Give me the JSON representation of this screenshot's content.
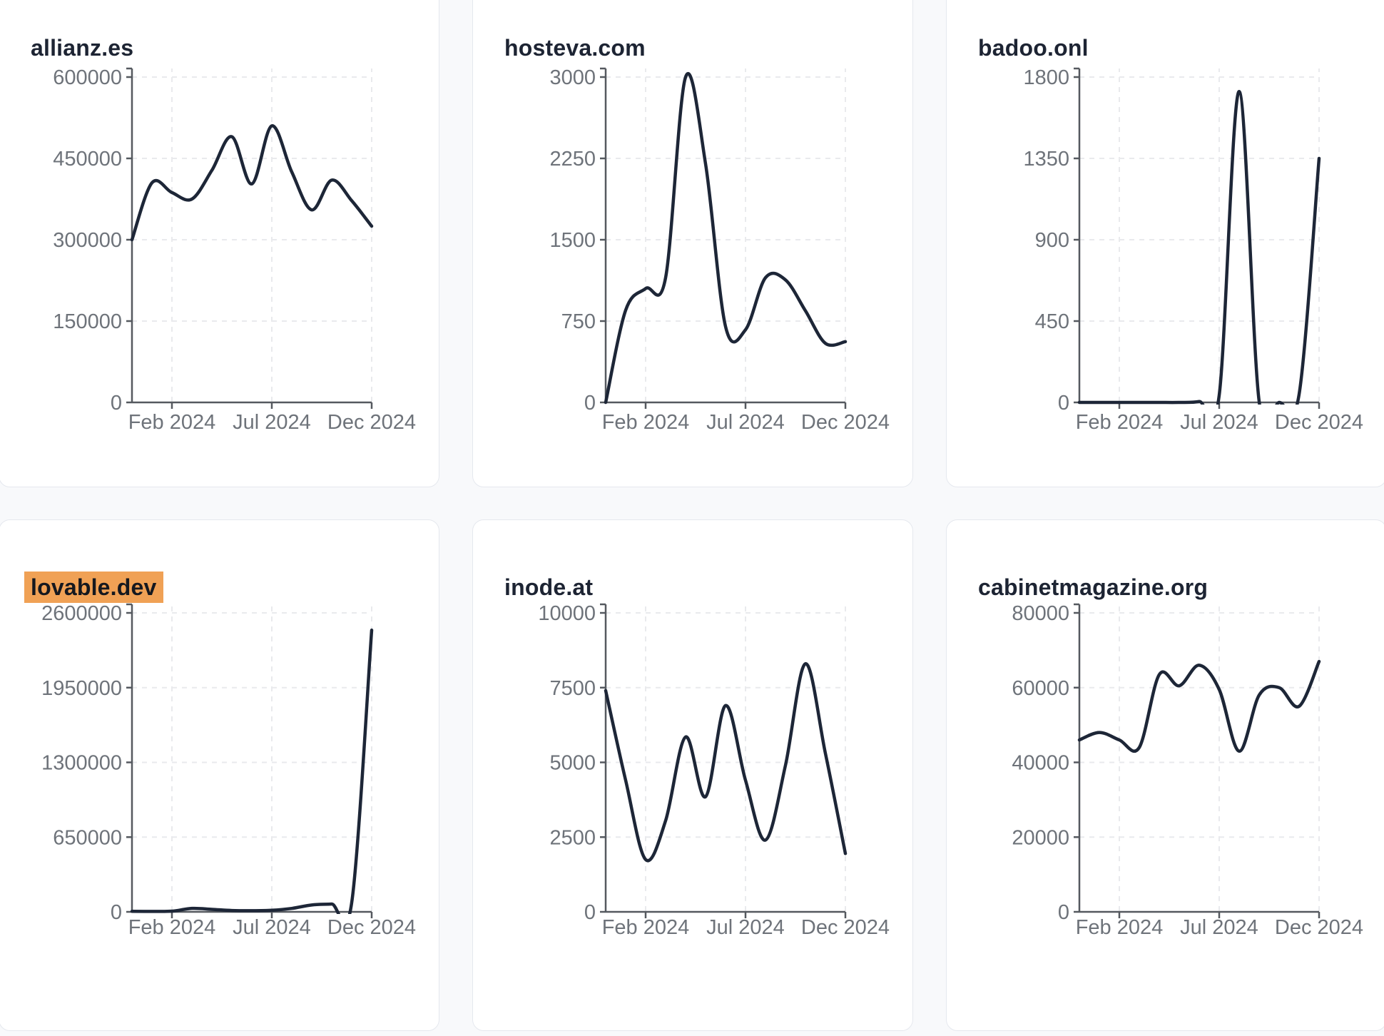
{
  "page": {
    "background": "#f8f9fb",
    "x_tick_labels": [
      "Feb 2024",
      "Jul 2024",
      "Dec 2024"
    ]
  },
  "style": {
    "line_color": "#1d2637",
    "axis_color": "#55595f",
    "tick_text_color": "#6e737a",
    "grid_color": "#e9eaed",
    "card_border": "#e5e8ee",
    "card_bg": "#ffffff",
    "title_color": "#1d2433",
    "highlight_bg": "#f0a155",
    "highlight_text": "#15181f"
  },
  "chart_data": [
    {
      "type": "line",
      "title": "allianz.es",
      "title_highlight": false,
      "x_months": [
        "Dec 2023",
        "Jan 2024",
        "Feb 2024",
        "Mar 2024",
        "Apr 2024",
        "May 2024",
        "Jun 2024",
        "Jul 2024",
        "Aug 2024",
        "Sep 2024",
        "Oct 2024",
        "Nov 2024",
        "Dec 2024"
      ],
      "values": [
        300000,
        405000,
        387000,
        375000,
        428000,
        490000,
        403000,
        510000,
        425000,
        355000,
        410000,
        372000,
        325000
      ],
      "ylim": [
        0,
        600000
      ],
      "yticks": [
        0,
        150000,
        300000,
        450000,
        600000
      ],
      "xticks": [
        {
          "label": "Feb 2024",
          "month_index": 2
        },
        {
          "label": "Jul 2024",
          "month_index": 7
        },
        {
          "label": "Dec 2024",
          "month_index": 12
        }
      ],
      "grid": true,
      "legend": "none",
      "line_color": "#1d2637"
    },
    {
      "type": "line",
      "title": "hosteva.com",
      "title_highlight": false,
      "x_months": [
        "Dec 2023",
        "Jan 2024",
        "Feb 2024",
        "Mar 2024",
        "Apr 2024",
        "May 2024",
        "Jun 2024",
        "Jul 2024",
        "Aug 2024",
        "Sep 2024",
        "Oct 2024",
        "Nov 2024",
        "Dec 2024"
      ],
      "values": [
        0,
        850,
        1050,
        1150,
        3000,
        2200,
        700,
        670,
        1150,
        1130,
        845,
        545,
        560
      ],
      "ylim": [
        0,
        3000
      ],
      "yticks": [
        0,
        750,
        1500,
        2250,
        3000
      ],
      "xticks": [
        {
          "label": "Feb 2024",
          "month_index": 2
        },
        {
          "label": "Jul 2024",
          "month_index": 7
        },
        {
          "label": "Dec 2024",
          "month_index": 12
        }
      ],
      "grid": true,
      "legend": "none",
      "line_color": "#1d2637"
    },
    {
      "type": "line",
      "title": "badoo.onl",
      "title_highlight": false,
      "x_months": [
        "Dec 2023",
        "Jan 2024",
        "Feb 2024",
        "Mar 2024",
        "Apr 2024",
        "May 2024",
        "Jun 2024",
        "Jul 2024",
        "Aug 2024",
        "Sep 2024",
        "Oct 2024",
        "Nov 2024",
        "Dec 2024"
      ],
      "values": [
        0,
        0,
        0,
        0,
        0,
        0,
        5,
        40,
        1720,
        5,
        0,
        45,
        1350
      ],
      "ylim": [
        0,
        1800
      ],
      "yticks": [
        0,
        450,
        900,
        1350,
        1800
      ],
      "xticks": [
        {
          "label": "Feb 2024",
          "month_index": 2
        },
        {
          "label": "Jul 2024",
          "month_index": 7
        },
        {
          "label": "Dec 2024",
          "month_index": 12
        }
      ],
      "grid": true,
      "legend": "none",
      "line_color": "#1d2637"
    },
    {
      "type": "line",
      "title": "lovable.dev",
      "title_highlight": true,
      "x_months": [
        "Dec 2023",
        "Jan 2024",
        "Feb 2024",
        "Mar 2024",
        "Apr 2024",
        "May 2024",
        "Jun 2024",
        "Jul 2024",
        "Aug 2024",
        "Sep 2024",
        "Oct 2024",
        "Nov 2024",
        "Dec 2024"
      ],
      "values": [
        5000,
        4000,
        6000,
        30000,
        22000,
        12000,
        10000,
        14000,
        30000,
        60000,
        68000,
        80000,
        2450000
      ],
      "ylim": [
        0,
        2600000
      ],
      "yticks": [
        0,
        650000,
        1300000,
        1950000,
        2600000
      ],
      "xticks": [
        {
          "label": "Feb 2024",
          "month_index": 2
        },
        {
          "label": "Jul 2024",
          "month_index": 7
        },
        {
          "label": "Dec 2024",
          "month_index": 12
        }
      ],
      "grid": true,
      "legend": "none",
      "line_color": "#1d2637"
    },
    {
      "type": "line",
      "title": "inode.at",
      "title_highlight": false,
      "x_months": [
        "Dec 2023",
        "Jan 2024",
        "Feb 2024",
        "Mar 2024",
        "Apr 2024",
        "May 2024",
        "Jun 2024",
        "Jul 2024",
        "Aug 2024",
        "Sep 2024",
        "Oct 2024",
        "Nov 2024",
        "Dec 2024"
      ],
      "values": [
        7400,
        4400,
        1750,
        3050,
        5850,
        3850,
        6900,
        4400,
        2400,
        4900,
        8300,
        5300,
        1950
      ],
      "ylim": [
        0,
        10000
      ],
      "yticks": [
        0,
        2500,
        5000,
        7500,
        10000
      ],
      "xticks": [
        {
          "label": "Feb 2024",
          "month_index": 2
        },
        {
          "label": "Jul 2024",
          "month_index": 7
        },
        {
          "label": "Dec 2024",
          "month_index": 12
        }
      ],
      "grid": true,
      "legend": "none",
      "line_color": "#1d2637"
    },
    {
      "type": "line",
      "title": "cabinetmagazine.org",
      "title_highlight": false,
      "x_months": [
        "Dec 2023",
        "Jan 2024",
        "Feb 2024",
        "Mar 2024",
        "Apr 2024",
        "May 2024",
        "Jun 2024",
        "Jul 2024",
        "Aug 2024",
        "Sep 2024",
        "Oct 2024",
        "Nov 2024",
        "Dec 2024"
      ],
      "values": [
        46000,
        48000,
        46000,
        44000,
        63500,
        60500,
        66000,
        59500,
        43000,
        58000,
        60000,
        55000,
        67000
      ],
      "ylim": [
        0,
        80000
      ],
      "yticks": [
        0,
        20000,
        40000,
        60000,
        80000
      ],
      "xticks": [
        {
          "label": "Feb 2024",
          "month_index": 2
        },
        {
          "label": "Jul 2024",
          "month_index": 7
        },
        {
          "label": "Dec 2024",
          "month_index": 12
        }
      ],
      "grid": true,
      "legend": "none",
      "line_color": "#1d2637"
    }
  ]
}
